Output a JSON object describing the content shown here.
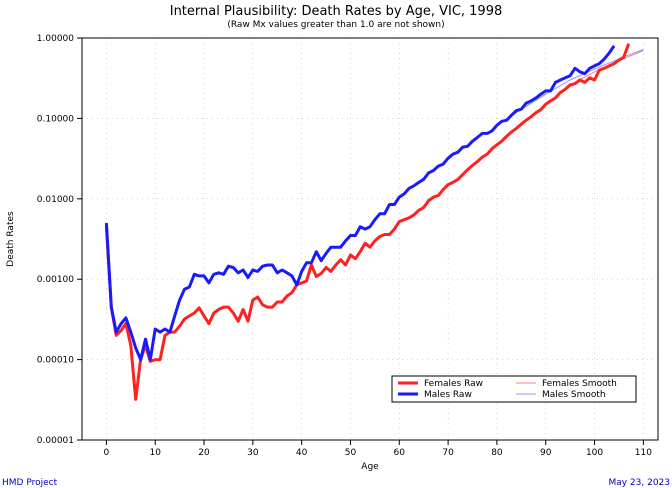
{
  "footer": {
    "left": "HMD Project",
    "right": "May 23, 2023"
  },
  "colors": {
    "females_raw": "#ff2020",
    "males_raw": "#1a1aff",
    "females_smooth": "#ff8080",
    "males_smooth": "#9090ff",
    "grid": "#bbbbbb"
  },
  "chart_data": {
    "type": "line",
    "title": "Internal Plausibility: Death Rates by Age, VIC, 1998",
    "subtitle": "(Raw Mx values greater than 1.0 are not shown)",
    "xlabel": "Age",
    "ylabel": "Death Rates",
    "y_scale": "log",
    "xlim": [
      -5,
      113
    ],
    "ylim": [
      1e-05,
      1.0
    ],
    "grid": true,
    "legend_position": "bottom-right",
    "x_ticks": [
      "0",
      "10",
      "20",
      "30",
      "40",
      "50",
      "60",
      "70",
      "80",
      "90",
      "100",
      "110"
    ],
    "y_ticks": [
      "0.00001",
      "0.00010",
      "0.00100",
      "0.01000",
      "0.10000",
      "1.00000"
    ],
    "legend": [
      "Females Raw",
      "Males Raw",
      "Females Smooth",
      "Males Smooth"
    ],
    "series": [
      {
        "name": "Females Raw",
        "style": "raw",
        "x": [
          0,
          1,
          2,
          3,
          4,
          5,
          6,
          7,
          8,
          9,
          10,
          11,
          12,
          13,
          14,
          15,
          16,
          17,
          18,
          19,
          20,
          21,
          22,
          23,
          24,
          25,
          26,
          27,
          28,
          29,
          30,
          31,
          32,
          33,
          34,
          35,
          36,
          37,
          38,
          39,
          40,
          41,
          42,
          43,
          44,
          45,
          46,
          47,
          48,
          49,
          50,
          51,
          52,
          53,
          54,
          55,
          56,
          57,
          58,
          59,
          60,
          61,
          62,
          63,
          64,
          65,
          66,
          67,
          68,
          69,
          70,
          71,
          72,
          73,
          74,
          75,
          76,
          77,
          78,
          79,
          80,
          81,
          82,
          83,
          84,
          85,
          86,
          87,
          88,
          89,
          90,
          91,
          92,
          93,
          94,
          95,
          96,
          97,
          98,
          99,
          100,
          101,
          102,
          103,
          104,
          105,
          106,
          107
        ],
        "y": [
          0.0045,
          0.00045,
          0.0002,
          0.00023,
          0.00028,
          0.00015,
          3.2e-05,
          0.0001,
          0.00015,
          9.5e-05,
          0.0001,
          0.0001,
          0.0002,
          0.00022,
          0.00022,
          0.00026,
          0.00032,
          0.00035,
          0.00038,
          0.00044,
          0.00035,
          0.00028,
          0.00038,
          0.00042,
          0.00045,
          0.00045,
          0.00038,
          0.0003,
          0.00042,
          0.0003,
          0.00055,
          0.0006,
          0.00048,
          0.00045,
          0.00045,
          0.00052,
          0.00052,
          0.00062,
          0.00068,
          0.00085,
          0.0009,
          0.00095,
          0.0015,
          0.00108,
          0.00118,
          0.0014,
          0.00125,
          0.0015,
          0.00175,
          0.0015,
          0.002,
          0.0018,
          0.0022,
          0.0028,
          0.0025,
          0.003,
          0.0034,
          0.0036,
          0.0036,
          0.0042,
          0.0052,
          0.0055,
          0.0058,
          0.0063,
          0.0072,
          0.0078,
          0.0095,
          0.0105,
          0.011,
          0.013,
          0.015,
          0.016,
          0.0175,
          0.02,
          0.023,
          0.026,
          0.029,
          0.033,
          0.036,
          0.042,
          0.047,
          0.052,
          0.06,
          0.068,
          0.075,
          0.085,
          0.095,
          0.105,
          0.118,
          0.128,
          0.15,
          0.165,
          0.18,
          0.21,
          0.23,
          0.26,
          0.27,
          0.3,
          0.28,
          0.32,
          0.3,
          0.4,
          0.42,
          0.45,
          0.48,
          0.53,
          0.58,
          0.85
        ]
      },
      {
        "name": "Males Raw",
        "style": "raw",
        "x": [
          0,
          1,
          2,
          3,
          4,
          5,
          6,
          7,
          8,
          9,
          10,
          11,
          12,
          13,
          14,
          15,
          16,
          17,
          18,
          19,
          20,
          21,
          22,
          23,
          24,
          25,
          26,
          27,
          28,
          29,
          30,
          31,
          32,
          33,
          34,
          35,
          36,
          37,
          38,
          39,
          40,
          41,
          42,
          43,
          44,
          45,
          46,
          47,
          48,
          49,
          50,
          51,
          52,
          53,
          54,
          55,
          56,
          57,
          58,
          59,
          60,
          61,
          62,
          63,
          64,
          65,
          66,
          67,
          68,
          69,
          70,
          71,
          72,
          73,
          74,
          75,
          76,
          77,
          78,
          79,
          80,
          81,
          82,
          83,
          84,
          85,
          86,
          87,
          88,
          89,
          90,
          91,
          92,
          93,
          94,
          95,
          96,
          97,
          98,
          99,
          100,
          101,
          102,
          103,
          104
        ],
        "y": [
          0.005,
          0.00045,
          0.00022,
          0.00028,
          0.00033,
          0.00022,
          0.00014,
          0.0001,
          0.00018,
          0.0001,
          0.00024,
          0.00022,
          0.00024,
          0.00022,
          0.00035,
          0.00055,
          0.00075,
          0.0008,
          0.00115,
          0.0011,
          0.0011,
          0.0009,
          0.00115,
          0.0012,
          0.00115,
          0.00145,
          0.0014,
          0.0012,
          0.0013,
          0.00105,
          0.0013,
          0.00125,
          0.00145,
          0.0015,
          0.0015,
          0.0012,
          0.0013,
          0.0012,
          0.0011,
          0.00085,
          0.00125,
          0.0016,
          0.0016,
          0.0022,
          0.0017,
          0.0021,
          0.0025,
          0.0025,
          0.0025,
          0.003,
          0.0035,
          0.0035,
          0.0045,
          0.0042,
          0.0045,
          0.0055,
          0.0065,
          0.0065,
          0.0085,
          0.0085,
          0.0105,
          0.0115,
          0.0135,
          0.0145,
          0.016,
          0.0175,
          0.021,
          0.0225,
          0.0255,
          0.027,
          0.032,
          0.036,
          0.038,
          0.044,
          0.045,
          0.052,
          0.058,
          0.065,
          0.065,
          0.07,
          0.082,
          0.092,
          0.095,
          0.11,
          0.125,
          0.13,
          0.155,
          0.165,
          0.18,
          0.2,
          0.22,
          0.22,
          0.28,
          0.3,
          0.32,
          0.34,
          0.42,
          0.38,
          0.36,
          0.42,
          0.45,
          0.48,
          0.55,
          0.65,
          0.8
        ]
      },
      {
        "name": "Females Smooth",
        "style": "smooth",
        "x": [
          80,
          85,
          90,
          95,
          100,
          105,
          110
        ],
        "y": [
          0.047,
          0.085,
          0.15,
          0.26,
          0.38,
          0.52,
          0.7
        ]
      },
      {
        "name": "Males Smooth",
        "style": "smooth",
        "x": [
          80,
          85,
          90,
          95,
          100,
          105,
          110
        ],
        "y": [
          0.082,
          0.13,
          0.2,
          0.3,
          0.41,
          0.55,
          0.72
        ]
      }
    ]
  }
}
